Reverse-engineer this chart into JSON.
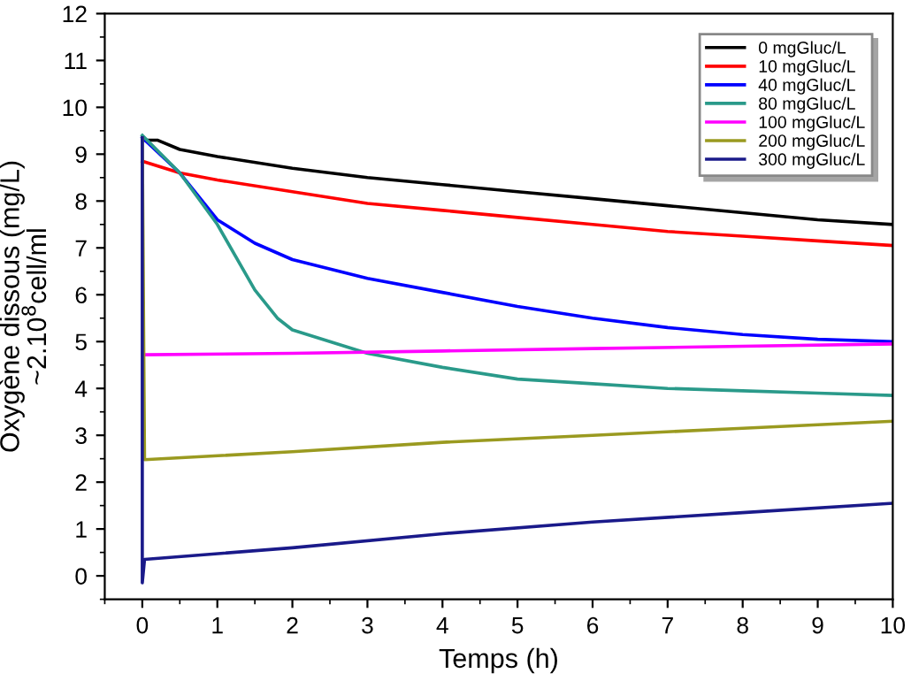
{
  "chart_data": {
    "type": "line",
    "xlabel": "Temps (h)",
    "ylabel": "Oxygène dissous (mg/L)\n~2.10$^{8}$cell/ml",
    "xlim": [
      -0.5,
      10
    ],
    "ylim": [
      -0.5,
      12
    ],
    "xticks": [
      0,
      1,
      2,
      3,
      4,
      5,
      6,
      7,
      8,
      9,
      10
    ],
    "yticks": [
      0,
      1,
      2,
      3,
      4,
      5,
      6,
      7,
      8,
      9,
      10,
      11,
      12
    ],
    "grid": false,
    "legend": "top right",
    "marker": "none",
    "line_style": "solid",
    "series": [
      {
        "name": "0 mgGluc/L",
        "color": "#000000",
        "x": [
          0,
          0.2,
          0.5,
          1,
          2,
          3,
          4,
          5,
          6,
          7,
          8,
          9,
          10
        ],
        "values": [
          9.3,
          9.3,
          9.1,
          8.95,
          8.7,
          8.5,
          8.35,
          8.2,
          8.05,
          7.9,
          7.75,
          7.6,
          7.5
        ]
      },
      {
        "name": "10 mgGluc/L",
        "color": "#ff0000",
        "x": [
          0,
          0.5,
          1,
          2,
          3,
          4,
          5,
          6,
          7,
          8,
          9,
          10
        ],
        "values": [
          8.85,
          8.6,
          8.45,
          8.2,
          7.95,
          7.8,
          7.65,
          7.5,
          7.35,
          7.25,
          7.15,
          7.05
        ]
      },
      {
        "name": "40 mgGluc/L",
        "color": "#0000ff",
        "x": [
          0,
          0.5,
          1,
          1.5,
          2,
          3,
          4,
          5,
          6,
          7,
          8,
          9,
          10
        ],
        "values": [
          9.35,
          8.6,
          7.6,
          7.1,
          6.75,
          6.35,
          6.05,
          5.75,
          5.5,
          5.3,
          5.15,
          5.05,
          5.0
        ]
      },
      {
        "name": "80 mgGluc/L",
        "color": "#2a9a8a",
        "x": [
          0,
          0.5,
          1,
          1.5,
          1.8,
          2,
          2.5,
          3,
          4,
          5,
          6,
          7,
          8,
          9,
          10
        ],
        "values": [
          9.4,
          8.6,
          7.5,
          6.1,
          5.5,
          5.25,
          5.0,
          4.75,
          4.45,
          4.2,
          4.1,
          4.0,
          3.95,
          3.9,
          3.85
        ]
      },
      {
        "name": "100 mgGluc/L",
        "color": "#ff00ff",
        "x": [
          0.03,
          2,
          4,
          6,
          8,
          10
        ],
        "values": [
          4.72,
          4.75,
          4.8,
          4.85,
          4.9,
          4.95
        ]
      },
      {
        "name": "200 mgGluc/L",
        "color": "#9a9a20",
        "x": [
          0,
          0.03,
          2,
          4,
          6,
          8,
          10
        ],
        "values": [
          9.35,
          2.48,
          2.65,
          2.85,
          3.0,
          3.15,
          3.3
        ]
      },
      {
        "name": "300 mgGluc/L",
        "color": "#1a1a8a",
        "x": [
          0,
          0,
          0.03,
          2,
          4,
          6,
          8,
          10
        ],
        "values": [
          9.35,
          -0.15,
          0.35,
          0.6,
          0.9,
          1.15,
          1.35,
          1.55
        ]
      }
    ]
  }
}
